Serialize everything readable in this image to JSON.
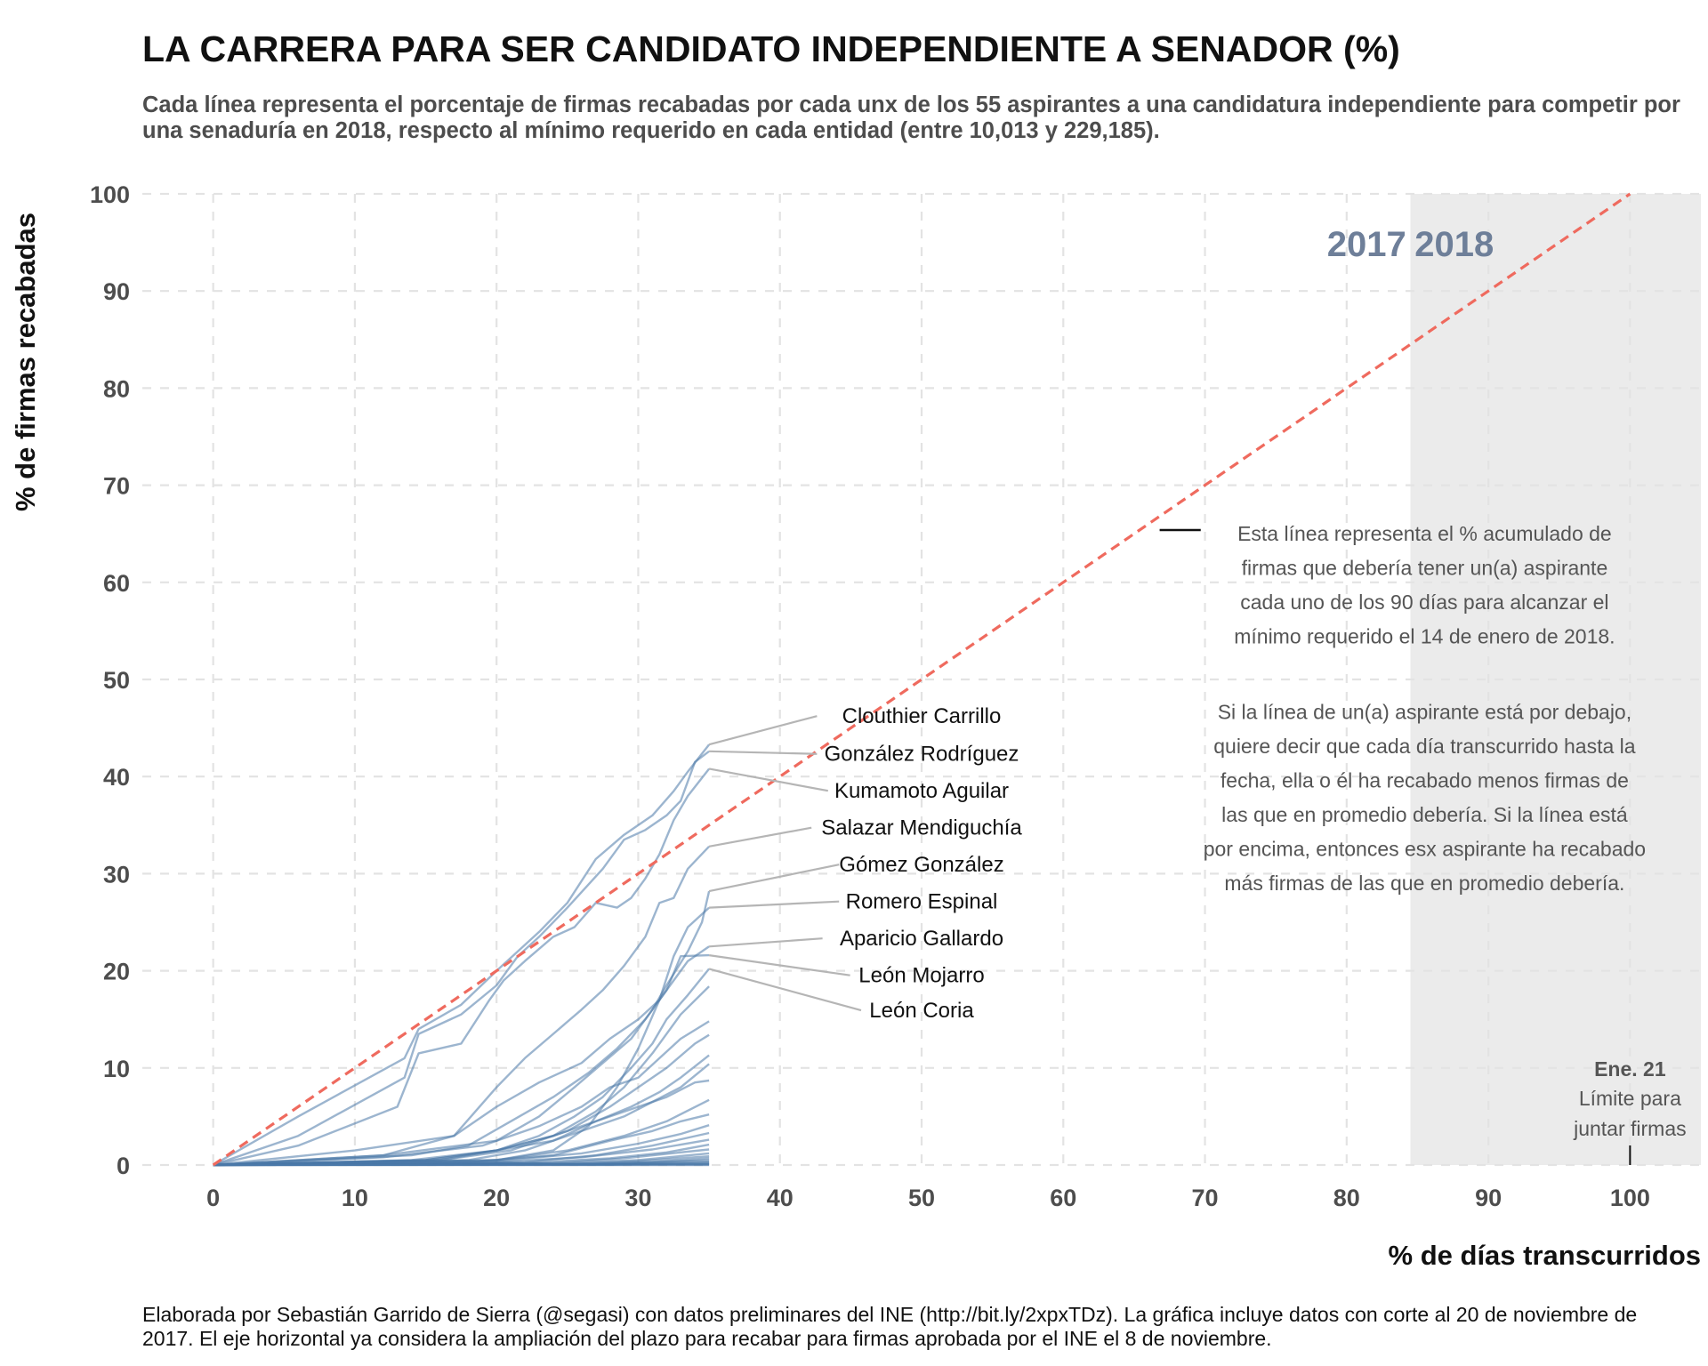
{
  "chart": {
    "title": "LA CARRERA PARA SER CANDIDATO INDEPENDIENTE A SENADOR (%)",
    "subtitle": "Cada línea representa el porcentaje de firmas recabadas por cada unx de los 55 aspirantes a una candidatura independiente para competir por una senaduría en 2018, respecto al mínimo requerido en cada entidad (entre 10,013 y 229,185).",
    "caption": "Elaborada por Sebastián Garrido de Sierra (@segasi) con datos preliminares del INE (http://bit.ly/2xpxTDz). La gráfica incluye datos con corte al 20 de noviembre de 2017. El eje horizontal ya considera la ampliación del plazo para recabar para firmas aprobada por el INE el 8 de noviembre.",
    "colors": {
      "series": "#4a78a8",
      "reference": "#ef6a5e",
      "shade": "#ebebeb",
      "grid": "#e3e3e3"
    }
  },
  "chart_data": {
    "type": "line",
    "title": "LA CARRERA PARA SER CANDIDATO INDEPENDIENTE A SENADOR (%)",
    "xlabel": "% de días transcurridos",
    "ylabel": "% de firmas recabadas",
    "xlim": [
      -5,
      105
    ],
    "ylim": [
      0,
      100
    ],
    "xticks": [
      0,
      10,
      20,
      30,
      40,
      50,
      60,
      70,
      80,
      90,
      100
    ],
    "yticks": [
      0,
      10,
      20,
      30,
      40,
      50,
      60,
      70,
      80,
      90,
      100
    ],
    "grid": "dashed",
    "reference_line": {
      "x": [
        0,
        100
      ],
      "y": [
        0,
        100
      ],
      "style": "dashed",
      "color": "#ef6a5e"
    },
    "shaded_region": {
      "x": [
        84.5,
        105
      ],
      "labels": [
        "2017",
        "2018"
      ]
    },
    "series": [
      {
        "name": "Clouthier Carrillo",
        "x": [
          0,
          6,
          13.5,
          14.5,
          17.5,
          20,
          21.5,
          23,
          25,
          27,
          29,
          31,
          32.5,
          33.5,
          35
        ],
        "y": [
          0,
          5,
          11,
          14,
          16.5,
          20,
          22,
          24,
          27,
          31.5,
          34,
          36,
          38.5,
          40.5,
          43.3
        ]
      },
      {
        "name": "González Rodríguez",
        "x": [
          0,
          6,
          13.5,
          14.5,
          17.5,
          20,
          21.5,
          23,
          25,
          27.5,
          29,
          30.5,
          32,
          33,
          34,
          35
        ],
        "y": [
          0,
          3,
          9,
          13.5,
          15.5,
          18.5,
          21.5,
          23.5,
          26.5,
          30.5,
          33.5,
          34.5,
          36,
          37.5,
          41.5,
          42.6
        ]
      },
      {
        "name": "Kumamoto Aguilar",
        "x": [
          0,
          6,
          13,
          14.5,
          17.5,
          19.5,
          20.5,
          22,
          24,
          25.5,
          27,
          28.5,
          29.5,
          30.5,
          31.5,
          32.5,
          33.5,
          35
        ],
        "y": [
          0,
          2,
          6,
          11.5,
          12.5,
          17,
          19,
          21,
          23.5,
          24.5,
          27,
          26.5,
          27.5,
          29.5,
          32,
          35.5,
          38,
          40.8
        ]
      },
      {
        "name": "Salazar Mendiguchía",
        "x": [
          0,
          10,
          17,
          20,
          22,
          24,
          26,
          27.5,
          29,
          30.5,
          31.5,
          32.5,
          33.5,
          35
        ],
        "y": [
          0,
          1.5,
          3,
          8,
          11,
          13.5,
          16,
          18,
          20.5,
          23.5,
          27,
          27.5,
          30.5,
          32.8
        ]
      },
      {
        "name": "Gómez González",
        "x": [
          0,
          12,
          20,
          23,
          25.5,
          27.5,
          29.5,
          31,
          32,
          33.5,
          34.5,
          35
        ],
        "y": [
          0,
          1,
          2.5,
          5,
          8,
          10.5,
          13,
          16,
          18.5,
          22,
          25,
          28.2
        ]
      },
      {
        "name": "Romero Espinal",
        "x": [
          0,
          20,
          24,
          26.5,
          28.5,
          30,
          31.5,
          32.5,
          33.5,
          35
        ],
        "y": [
          0,
          0.5,
          1.5,
          4,
          8,
          12,
          17,
          21.5,
          24.5,
          26.5
        ]
      },
      {
        "name": "Aparicio Gallardo",
        "x": [
          0,
          12,
          17,
          20,
          23,
          26,
          28,
          30,
          31.5,
          32.5,
          33.5,
          35
        ],
        "y": [
          0,
          1,
          3,
          6,
          8.5,
          10.5,
          13,
          15,
          17,
          19,
          21,
          22.5
        ]
      },
      {
        "name": "León Mojarro",
        "x": [
          0,
          14,
          18,
          21,
          24,
          26.5,
          28.5,
          30.5,
          32,
          33,
          35
        ],
        "y": [
          0,
          1,
          2,
          4.5,
          7,
          9.5,
          12,
          15,
          18,
          21.5,
          21.6
        ]
      },
      {
        "name": "León Coria",
        "x": [
          0,
          16,
          20,
          23,
          25.5,
          27.5,
          29.5,
          31,
          32,
          33.5,
          35
        ],
        "y": [
          0,
          0.5,
          1.5,
          3,
          5,
          7,
          10,
          12.5,
          15,
          17.5,
          20.2
        ]
      },
      {
        "x": [
          0,
          14,
          20,
          24,
          27,
          29,
          31,
          33,
          35
        ],
        "y": [
          0,
          0.5,
          1.5,
          3,
          5.5,
          8,
          11.5,
          15.5,
          18.4
        ]
      },
      {
        "x": [
          0,
          12,
          19,
          23,
          26,
          28,
          30,
          31.5,
          33,
          35
        ],
        "y": [
          0,
          0.8,
          2,
          4,
          6,
          8,
          9,
          11,
          13,
          14.8
        ]
      },
      {
        "x": [
          0,
          16,
          21,
          25,
          28,
          30,
          32,
          34,
          35
        ],
        "y": [
          0,
          0.5,
          1.5,
          3.5,
          6,
          8,
          10,
          12.5,
          13.4
        ]
      },
      {
        "x": [
          0,
          15,
          20,
          24,
          27,
          29.5,
          31.5,
          33,
          35
        ],
        "y": [
          0,
          0.5,
          1.5,
          3,
          4.5,
          6,
          7.5,
          9,
          11.3
        ]
      },
      {
        "x": [
          0,
          18,
          22,
          26,
          29,
          31,
          33,
          35
        ],
        "y": [
          0,
          0.5,
          1.5,
          3.5,
          5,
          6.5,
          8,
          10.4
        ]
      },
      {
        "x": [
          0,
          15,
          20,
          24,
          27,
          30,
          32,
          34,
          35
        ],
        "y": [
          0,
          0.5,
          1.5,
          2.5,
          4.5,
          6,
          7,
          8.5,
          8.7
        ]
      },
      {
        "x": [
          0,
          20,
          25,
          29,
          32,
          35
        ],
        "y": [
          0,
          0.5,
          1.5,
          3,
          4.5,
          6.7
        ]
      },
      {
        "x": [
          0,
          18,
          24,
          28,
          31,
          33,
          35
        ],
        "y": [
          0,
          0.3,
          1,
          2.5,
          3.5,
          4.5,
          5.2
        ]
      },
      {
        "x": [
          0,
          20,
          26,
          30,
          33,
          35
        ],
        "y": [
          0,
          0.4,
          1.2,
          2.2,
          3.2,
          4.1
        ]
      },
      {
        "x": [
          0,
          22,
          27,
          31,
          35
        ],
        "y": [
          0,
          0.3,
          1,
          2,
          3.3
        ]
      },
      {
        "x": [
          0,
          20,
          26,
          31,
          35
        ],
        "y": [
          0,
          0.3,
          0.8,
          1.6,
          2.6
        ]
      },
      {
        "x": [
          0,
          22,
          28,
          32,
          35
        ],
        "y": [
          0,
          0.2,
          0.7,
          1.3,
          2.1
        ]
      },
      {
        "x": [
          0,
          24,
          29,
          35
        ],
        "y": [
          0,
          0.2,
          0.7,
          1.6
        ]
      },
      {
        "x": [
          0,
          25,
          30,
          35
        ],
        "y": [
          0,
          0.2,
          0.5,
          1.2
        ]
      },
      {
        "x": [
          0,
          25,
          30,
          35
        ],
        "y": [
          0,
          0.1,
          0.4,
          0.9
        ]
      },
      {
        "x": [
          0,
          26,
          31,
          35
        ],
        "y": [
          0,
          0.1,
          0.3,
          0.7
        ]
      },
      {
        "x": [
          0,
          27,
          35
        ],
        "y": [
          0,
          0.1,
          0.5
        ]
      },
      {
        "x": [
          0,
          27,
          35
        ],
        "y": [
          0,
          0.1,
          0.35
        ]
      },
      {
        "x": [
          0,
          28,
          35
        ],
        "y": [
          0,
          0.05,
          0.25
        ]
      },
      {
        "x": [
          0,
          28,
          35
        ],
        "y": [
          0,
          0.05,
          0.15
        ]
      },
      {
        "x": [
          0,
          35
        ],
        "y": [
          0,
          0.1
        ]
      },
      {
        "x": [
          0,
          35
        ],
        "y": [
          0,
          0.05
        ]
      },
      {
        "x": [
          0,
          35
        ],
        "y": [
          0,
          0
        ]
      }
    ],
    "labels": [
      {
        "text": "Clouthier Carrillo",
        "x": 50,
        "y": 45.5
      },
      {
        "text": "González Rodríguez",
        "x": 50,
        "y": 41.6
      },
      {
        "text": "Kumamoto Aguilar",
        "x": 50,
        "y": 37.8
      },
      {
        "text": "Salazar Mendiguchía",
        "x": 50,
        "y": 34.0
      },
      {
        "text": "Gómez González",
        "x": 50,
        "y": 30.2
      },
      {
        "text": "Romero Espinal",
        "x": 50,
        "y": 26.4
      },
      {
        "text": "Aparicio Gallardo",
        "x": 50,
        "y": 22.6
      },
      {
        "text": "León Mojarro",
        "x": 50,
        "y": 18.8
      },
      {
        "text": "León Coria",
        "x": 50,
        "y": 15.2
      }
    ],
    "annotations": {
      "reference_note": [
        "Esta línea representa el % acumulado de",
        "firmas que debería tener un(a) aspirante",
        "cada uno de los 90 días para alcanzar el",
        "mínimo requerido el 14 de enero de 2018.",
        "",
        "Si la línea de un(a) aspirante está por debajo,",
        "quiere decir que cada día transcurrido hasta la",
        "fecha, ella o él ha recabado menos firmas de",
        "las que en promedio debería. Si la línea está",
        "por encima, entonces esx aspirante ha recabado",
        "más firmas de las que en promedio debería."
      ],
      "deadline_title": "Ene. 21",
      "deadline_lines": [
        "Límite para",
        "juntar firmas"
      ],
      "year_left": "2017",
      "year_right": "2018"
    }
  }
}
